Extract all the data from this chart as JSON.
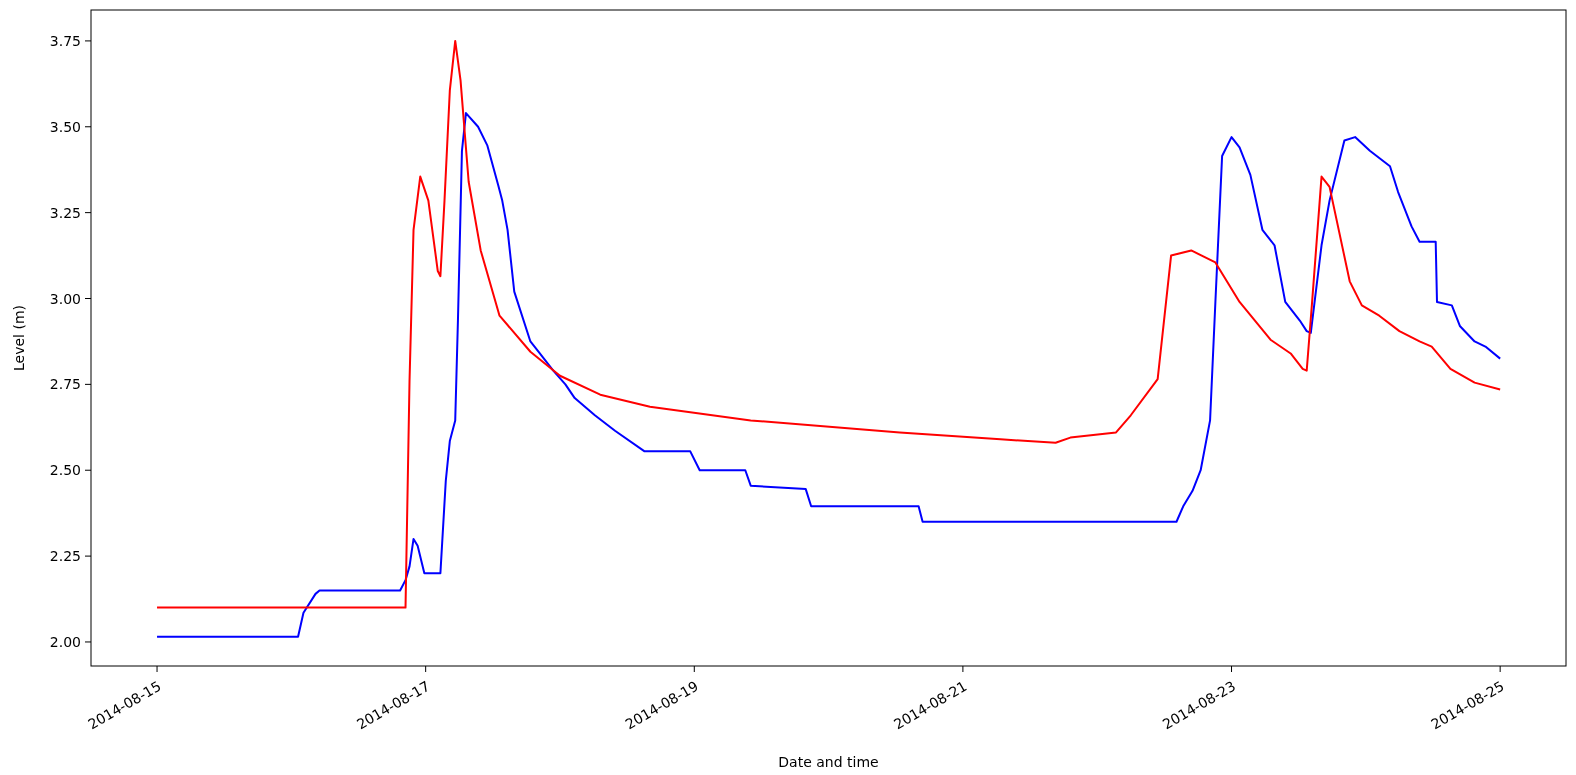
{
  "chart_data": {
    "type": "line",
    "xlabel": "Date and time",
    "ylabel": "Level (m)",
    "xlim": [
      "2014-08-14T12:12",
      "2014-08-25T11:46"
    ],
    "ylim": [
      1.93,
      3.84
    ],
    "xticks": [
      "2014-08-15",
      "2014-08-17",
      "2014-08-19",
      "2014-08-21",
      "2014-08-23",
      "2014-08-25"
    ],
    "yticks": [
      {
        "value": 2,
        "label": "2.00"
      },
      {
        "value": 2.25,
        "label": "2.25"
      },
      {
        "value": 2.5,
        "label": "2.50"
      },
      {
        "value": 2.75,
        "label": "2.75"
      },
      {
        "value": 3,
        "label": "3.00"
      },
      {
        "value": 3.25,
        "label": "3.25"
      },
      {
        "value": 3.5,
        "label": "3.50"
      },
      {
        "value": 3.75,
        "label": "3.75"
      }
    ],
    "grid": false,
    "marker": "none",
    "line_style": "solid",
    "series": [
      {
        "color": "#0000ff",
        "x": [
          "2014-08-15T00:00",
          "2014-08-16T01:12",
          "2014-08-16T02:10",
          "2014-08-16T04:19",
          "2014-08-16T05:02",
          "2014-08-16T19:26",
          "2014-08-16T20:24",
          "2014-08-16T21:07",
          "2014-08-16T21:50",
          "2014-08-16T22:34",
          "2014-08-16T23:46",
          "2014-08-17T02:38",
          "2014-08-17T03:36",
          "2014-08-17T04:19",
          "2014-08-17T05:17",
          "2014-08-17T05:46",
          "2014-08-17T06:29",
          "2014-08-17T07:12",
          "2014-08-17T09:22",
          "2014-08-17T11:02",
          "2014-08-17T12:58",
          "2014-08-17T13:41",
          "2014-08-17T14:38",
          "2014-08-17T15:50",
          "2014-08-17T18:43",
          "2014-08-17T20:24",
          "2014-08-17T22:48",
          "2014-08-18T00:58",
          "2014-08-18T02:38",
          "2014-08-18T06:14",
          "2014-08-18T09:50",
          "2014-08-18T15:07",
          "2014-08-18T23:17",
          "2014-08-19T00:58",
          "2014-08-19T09:07",
          "2014-08-19T10:05",
          "2014-08-19T19:55",
          "2014-08-19T20:53",
          "2014-08-20T16:05",
          "2014-08-20T16:48",
          "2014-08-22T14:10",
          "2014-08-22T15:22",
          "2014-08-22T17:02",
          "2014-08-22T18:29",
          "2014-08-22T20:10",
          "2014-08-22T21:07",
          "2014-08-22T22:19",
          "2014-08-23T00:00",
          "2014-08-23T01:26",
          "2014-08-23T03:22",
          "2014-08-23T05:31",
          "2014-08-23T07:41",
          "2014-08-23T09:36",
          "2014-08-23T12:14",
          "2014-08-23T13:26",
          "2014-08-23T14:10",
          "2014-08-23T16:05",
          "2014-08-23T17:31",
          "2014-08-23T20:10",
          "2014-08-23T22:05",
          "2014-08-24T00:43",
          "2014-08-24T04:19",
          "2014-08-24T05:46",
          "2014-08-24T08:10",
          "2014-08-24T09:36",
          "2014-08-24T12:29",
          "2014-08-24T12:43",
          "2014-08-24T15:22",
          "2014-08-24T16:48",
          "2014-08-24T19:26",
          "2014-08-24T21:22",
          "2014-08-25T00:00"
        ],
        "values": [
          2.015,
          2.015,
          2.085,
          2.14,
          2.15,
          2.15,
          2.18,
          2.22,
          2.3,
          2.28,
          2.2,
          2.2,
          2.47,
          2.585,
          2.645,
          2.935,
          3.43,
          3.54,
          3.5,
          3.445,
          3.33,
          3.285,
          3.2,
          3.02,
          2.875,
          2.84,
          2.79,
          2.75,
          2.71,
          2.66,
          2.615,
          2.555,
          2.555,
          2.5,
          2.5,
          2.455,
          2.445,
          2.395,
          2.395,
          2.35,
          2.35,
          2.395,
          2.44,
          2.5,
          2.645,
          2.99,
          3.415,
          3.47,
          3.44,
          3.36,
          3.2,
          3.155,
          2.99,
          2.935,
          2.905,
          2.9,
          3.155,
          3.285,
          3.46,
          3.47,
          3.43,
          3.385,
          3.31,
          3.21,
          3.165,
          3.165,
          2.99,
          2.98,
          2.92,
          2.875,
          2.86,
          2.825
        ]
      },
      {
        "color": "#ff0000",
        "x": [
          "2014-08-15T00:00",
          "2014-08-16T20:24",
          "2014-08-16T21:07",
          "2014-08-16T21:50",
          "2014-08-16T23:02",
          "2014-08-17T00:29",
          "2014-08-17T02:10",
          "2014-08-17T02:38",
          "2014-08-17T03:22",
          "2014-08-17T04:19",
          "2014-08-17T05:17",
          "2014-08-17T06:14",
          "2014-08-17T07:41",
          "2014-08-17T09:50",
          "2014-08-17T13:12",
          "2014-08-17T18:43",
          "2014-08-18T00:00",
          "2014-08-18T07:12",
          "2014-08-18T16:05",
          "2014-08-19T10:05",
          "2014-08-20T12:43",
          "2014-08-21T06:43",
          "2014-08-21T16:34",
          "2014-08-21T19:12",
          "2014-08-22T03:22",
          "2014-08-22T06:00",
          "2014-08-22T10:48",
          "2014-08-22T13:12",
          "2014-08-22T16:48",
          "2014-08-22T21:07",
          "2014-08-23T01:26",
          "2014-08-23T06:58",
          "2014-08-23T10:34",
          "2014-08-23T12:43",
          "2014-08-23T13:26",
          "2014-08-23T14:24",
          "2014-08-23T16:05",
          "2014-08-23T17:31",
          "2014-08-23T21:07",
          "2014-08-23T23:17",
          "2014-08-24T02:24",
          "2014-08-24T06:00",
          "2014-08-24T09:36",
          "2014-08-24T11:46",
          "2014-08-24T15:07",
          "2014-08-24T19:26",
          "2014-08-25T00:00"
        ],
        "values": [
          2.1,
          2.1,
          2.76,
          3.2,
          3.355,
          3.285,
          3.08,
          3.065,
          3.285,
          3.605,
          3.75,
          3.635,
          3.34,
          3.14,
          2.95,
          2.845,
          2.775,
          2.72,
          2.685,
          2.645,
          2.61,
          2.59,
          2.58,
          2.595,
          2.61,
          2.66,
          2.765,
          3.125,
          3.14,
          3.105,
          2.99,
          2.88,
          2.84,
          2.795,
          2.79,
          2.99,
          3.355,
          3.325,
          3.05,
          2.98,
          2.95,
          2.905,
          2.875,
          2.86,
          2.795,
          2.755,
          2.735
        ]
      }
    ]
  }
}
